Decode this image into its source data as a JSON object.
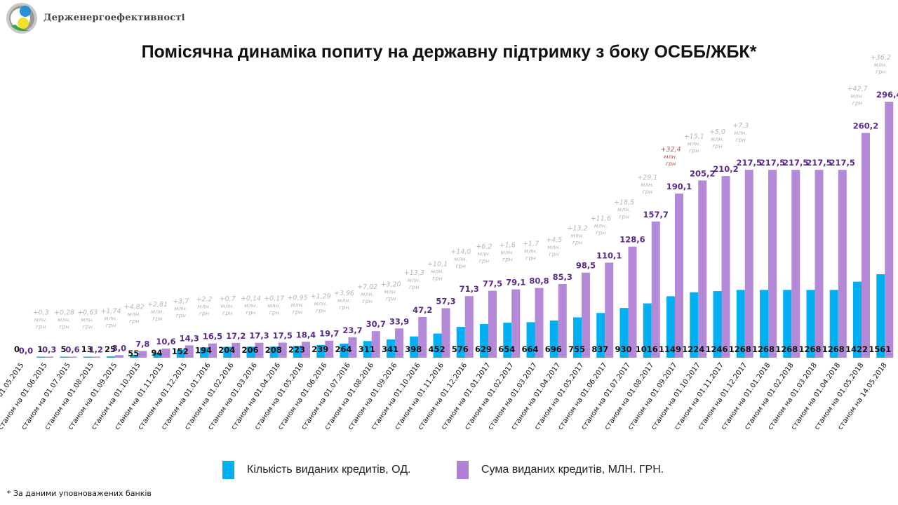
{
  "header": {
    "brand": "Держенергоефективності",
    "title": "Помісячна динаміка попиту на державну підтримку з боку ОСББ/ЖБК*"
  },
  "colors": {
    "count_bar": "#00b0f0",
    "sum_bar": "#b48ad8",
    "sum_label": "#5b2a8a",
    "count_label": "#111111",
    "delta_label": "#b5b5b5",
    "delta_highlight": "#c0504d"
  },
  "chart_data": {
    "type": "bar",
    "title": "Помісячна динаміка попиту на державну підтримку з боку ОСББ/ЖБК*",
    "xlabel": "",
    "ylabel": "",
    "grid": false,
    "legend_position": "bottom",
    "categories": [
      "01.05.2015",
      "станом на 01.06.2015",
      "станом на 01.07.2015",
      "станом на 01.08.2015",
      "станом на 01.09.2015",
      "станом на 01.10.2015",
      "станом на 01.11.2015",
      "станом на 01.12.2015",
      "станом на 01.01.2016",
      "станом на 01.02.2016",
      "станом на 01.03.2016",
      "станом на 01.04.2016",
      "станом на 01.05.2016",
      "станом на 01.06.2016",
      "станом на 01.07.2016",
      "станом на 01.08.2016",
      "станом на 01.09.2016",
      "станом на 01.10.2016",
      "станом на 01.11.2016",
      "станом на 01.12.2016",
      "станом на 01.01.2017",
      "станом на 01.02.2017",
      "станом на 01.03.2017",
      "станом на 01.04.2017",
      "станом на 01.05.2017",
      "станом на 01.06.2017",
      "станом на 01.07.2017",
      "станом на 01.08.2017",
      "станом на 01.09.2017",
      "станом на 01.10.2017",
      "станом на 01.11.2017",
      "станом на 01.12.2017",
      "станом на 01.01.2018",
      "станом на 01.02.2018",
      "станом на 01.03.2018",
      "станом на 01.04.2018",
      "станом на 01.05.2018",
      "станом на 14.05.2018"
    ],
    "series": [
      {
        "name": "Кількість виданих кредитів, ОД.",
        "color": "#00b0f0",
        "values": [
          0,
          1,
          5,
          13,
          25,
          55,
          94,
          152,
          194,
          204,
          206,
          208,
          223,
          239,
          264,
          311,
          341,
          398,
          452,
          576,
          629,
          654,
          664,
          696,
          755,
          837,
          930,
          1016,
          1149,
          1224,
          1246,
          1268,
          1268,
          1268,
          1268,
          1268,
          1422,
          1561
        ],
        "labels": [
          "0",
          "1",
          "5",
          "13",
          "25",
          "55",
          "94",
          "152",
          "194",
          "204",
          "206",
          "208",
          "223",
          "239",
          "264",
          "311",
          "341",
          "398",
          "452",
          "576",
          "629",
          "654",
          "664",
          "696",
          "755",
          "837",
          "930",
          "1016",
          "1149",
          "1224",
          "1246",
          "1268",
          "1268",
          "1268",
          "1268",
          "1268",
          "1422",
          "1561"
        ]
      },
      {
        "name": "Сума виданих кредитів, МЛН. ГРН.",
        "color": "#b48ad8",
        "values": [
          0.0,
          0.3,
          0.6,
          1.2,
          3.0,
          7.8,
          10.6,
          14.3,
          16.5,
          17.2,
          17.3,
          17.5,
          18.4,
          19.7,
          23.7,
          30.7,
          33.9,
          47.2,
          57.3,
          71.3,
          77.5,
          79.1,
          80.8,
          85.3,
          98.5,
          110.1,
          128.6,
          157.7,
          190.1,
          205.2,
          210.2,
          217.5,
          217.5,
          217.5,
          217.5,
          217.5,
          260.2,
          296.4
        ],
        "labels": [
          "0,0",
          "0,3",
          "0,6",
          "1,2",
          "3,0",
          "7,8",
          "10,6",
          "14,3",
          "16,5",
          "17,2",
          "17,3",
          "17,5",
          "18,4",
          "19,7",
          "23,7",
          "30,7",
          "33,9",
          "47,2",
          "57,3",
          "71,3",
          "77,5",
          "79,1",
          "80,8",
          "85,3",
          "98,5",
          "110,1",
          "128,6",
          "157,7",
          "190,1",
          "205,2",
          "210,2",
          "217,5",
          "217,5",
          "217,5",
          "217,5",
          "217,5",
          "260,2",
          "296,4"
        ]
      }
    ],
    "annotations": {
      "unit_line1": "млн.",
      "unit_line2": "грн",
      "deltas": [
        null,
        "+0,3",
        "+0,28",
        "+0,63",
        "+1,74",
        "+4,82",
        "+2,81",
        "+3,7",
        "+2,2",
        "+0,7",
        "+0,14",
        "+0,17",
        "+0,95",
        "+1,29",
        "+3,96",
        "+7,02",
        "+3,20",
        "+13,3",
        "+10,1",
        "+14,0",
        "+6,2",
        "+1,6",
        "+1,7",
        "+4,5",
        "+13,2",
        "+11,6",
        "+18,5",
        "+29,1",
        "+32,4",
        "+15,1",
        "+5,0",
        "+7,3",
        null,
        null,
        null,
        null,
        "+42,7",
        "+36,2"
      ],
      "highlight_index": 28
    }
  },
  "legend": {
    "items": [
      {
        "label": "Кількість виданих кредитів, ОД."
      },
      {
        "label": "Сума виданих кредитів, МЛН. ГРН."
      }
    ]
  },
  "footnote": "* За даними уповноважених банків"
}
